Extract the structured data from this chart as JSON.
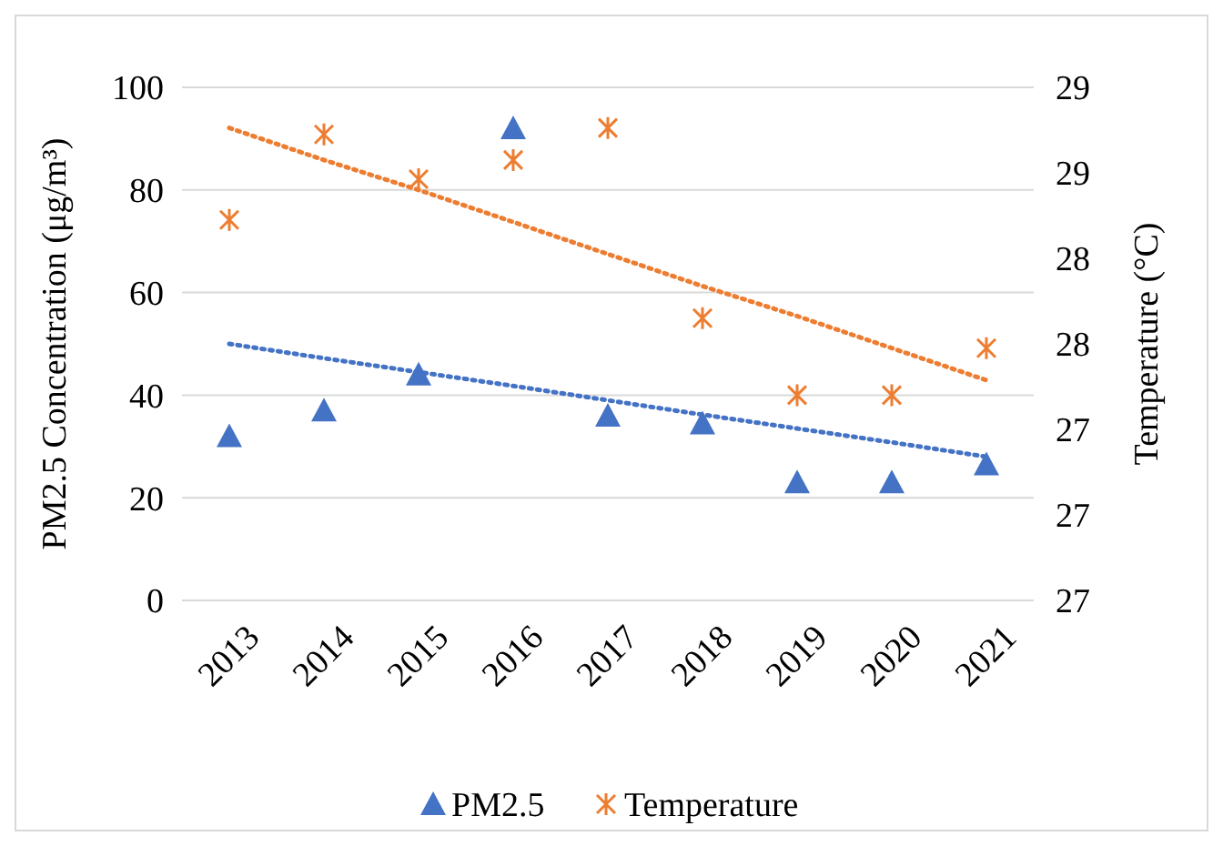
{
  "chart_data": {
    "type": "scatter",
    "ylabel": "PM2.5 Concentration (μg/m³)",
    "y2label": "Temperature (°C)",
    "categories": [
      "2013",
      "2014",
      "2015",
      "2016",
      "2017",
      "2018",
      "2019",
      "2020",
      "2021"
    ],
    "ylim": [
      0,
      100
    ],
    "yticks": [
      0,
      20,
      40,
      60,
      80,
      100
    ],
    "y2lim": [
      26.6,
      29.0
    ],
    "y2ticks": [
      {
        "value": 26.6,
        "label": "27"
      },
      {
        "value": 27.0,
        "label": "27"
      },
      {
        "value": 27.4,
        "label": "27"
      },
      {
        "value": 27.8,
        "label": "28"
      },
      {
        "value": 28.2,
        "label": "28"
      },
      {
        "value": 28.6,
        "label": "29"
      },
      {
        "value": 29.0,
        "label": "29"
      }
    ],
    "grid": "y",
    "legend": "bottom",
    "series": [
      {
        "name": "PM2.5",
        "color": "#4472c4",
        "marker": "triangle",
        "values": [
          32,
          37,
          44,
          92,
          36,
          34.5,
          23,
          23,
          26.5
        ]
      },
      {
        "name": "Temperature",
        "color": "#ed7d31",
        "marker": "cross",
        "axis": "y2",
        "values": [
          28.38,
          28.78,
          28.57,
          28.66,
          28.81,
          27.92,
          27.56,
          27.56,
          27.78
        ]
      },
      {
        "type": "line",
        "color": "#4472c4",
        "line_style": "dotted",
        "values": [
          50,
          47.2,
          44.5,
          41.8,
          39,
          36.2,
          33.5,
          30.8,
          28
        ]
      },
      {
        "type": "line",
        "color": "#ed7d31",
        "line_style": "dotted",
        "axis": "y2",
        "values": [
          28.81,
          28.66,
          28.52,
          28.37,
          28.22,
          28.07,
          27.93,
          27.78,
          27.63
        ]
      }
    ]
  }
}
